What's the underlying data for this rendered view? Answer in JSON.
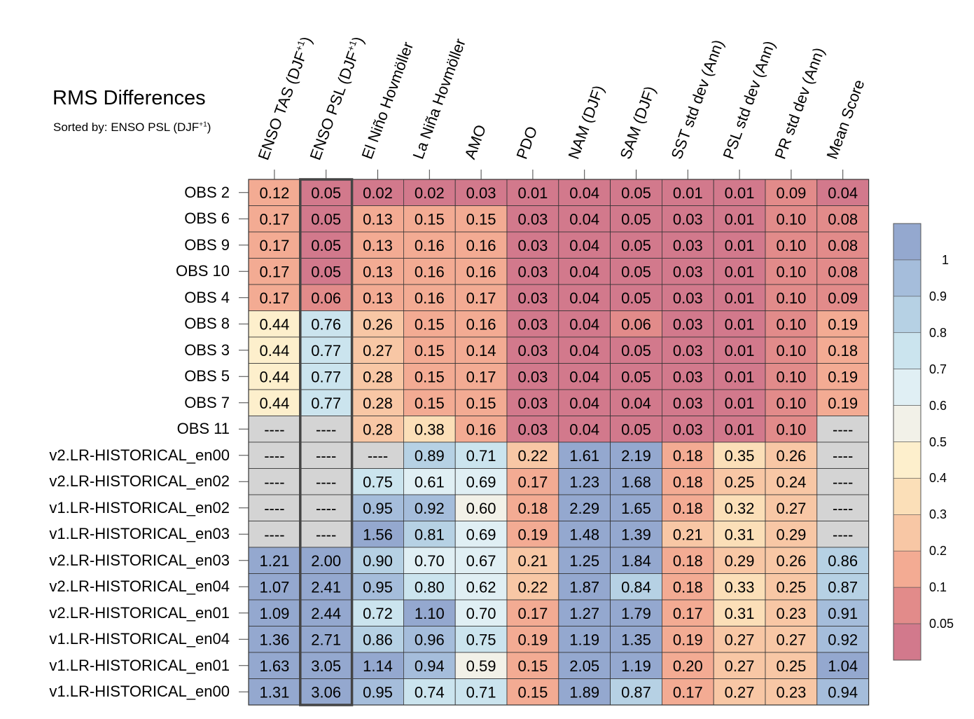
{
  "header": {
    "title": "RMS Differences",
    "subtitle_prefix": "Sorted by: ENSO PSL (DJF",
    "subtitle_sup": "+1",
    "subtitle_suffix": ")"
  },
  "chart_data": {
    "type": "heatmap",
    "title": "RMS Differences",
    "columns": [
      {
        "label": "ENSO TAS (DJF",
        "sup": "+1",
        "tail": ")"
      },
      {
        "label": "ENSO PSL (DJF",
        "sup": "+1",
        "tail": ")"
      },
      {
        "label": "El Niño Hovmöller",
        "sup": "",
        "tail": ""
      },
      {
        "label": "La Niña Hovmöller",
        "sup": "",
        "tail": ""
      },
      {
        "label": "AMO",
        "sup": "",
        "tail": ""
      },
      {
        "label": "PDO",
        "sup": "",
        "tail": ""
      },
      {
        "label": "NAM (DJF)",
        "sup": "",
        "tail": ""
      },
      {
        "label": "SAM (DJF)",
        "sup": "",
        "tail": ""
      },
      {
        "label": "SST std dev (Ann)",
        "sup": "",
        "tail": ""
      },
      {
        "label": "PSL std dev (Ann)",
        "sup": "",
        "tail": ""
      },
      {
        "label": "PR std dev (Ann)",
        "sup": "",
        "tail": ""
      },
      {
        "label": "Mean Score",
        "sup": "",
        "tail": ""
      }
    ],
    "rows": [
      "OBS 2",
      "OBS 6",
      "OBS 9",
      "OBS 10",
      "OBS 4",
      "OBS 8",
      "OBS 3",
      "OBS 5",
      "OBS 7",
      "OBS 11",
      "v2.LR-HISTORICAL_en00",
      "v2.LR-HISTORICAL_en02",
      "v1.LR-HISTORICAL_en02",
      "v1.LR-HISTORICAL_en03",
      "v2.LR-HISTORICAL_en03",
      "v2.LR-HISTORICAL_en04",
      "v2.LR-HISTORICAL_en01",
      "v1.LR-HISTORICAL_en04",
      "v1.LR-HISTORICAL_en01",
      "v1.LR-HISTORICAL_en00"
    ],
    "values": [
      [
        "0.12",
        "0.05",
        "0.02",
        "0.02",
        "0.03",
        "0.01",
        "0.04",
        "0.05",
        "0.01",
        "0.01",
        "0.09",
        "0.04"
      ],
      [
        "0.17",
        "0.05",
        "0.13",
        "0.15",
        "0.15",
        "0.03",
        "0.04",
        "0.05",
        "0.03",
        "0.01",
        "0.10",
        "0.08"
      ],
      [
        "0.17",
        "0.05",
        "0.13",
        "0.16",
        "0.16",
        "0.03",
        "0.04",
        "0.05",
        "0.03",
        "0.01",
        "0.10",
        "0.08"
      ],
      [
        "0.17",
        "0.05",
        "0.13",
        "0.16",
        "0.16",
        "0.03",
        "0.04",
        "0.05",
        "0.03",
        "0.01",
        "0.10",
        "0.08"
      ],
      [
        "0.17",
        "0.06",
        "0.13",
        "0.16",
        "0.17",
        "0.03",
        "0.04",
        "0.05",
        "0.03",
        "0.01",
        "0.10",
        "0.09"
      ],
      [
        "0.44",
        "0.76",
        "0.26",
        "0.15",
        "0.16",
        "0.03",
        "0.04",
        "0.06",
        "0.03",
        "0.01",
        "0.10",
        "0.19"
      ],
      [
        "0.44",
        "0.77",
        "0.27",
        "0.15",
        "0.14",
        "0.03",
        "0.04",
        "0.05",
        "0.03",
        "0.01",
        "0.10",
        "0.18"
      ],
      [
        "0.44",
        "0.77",
        "0.28",
        "0.15",
        "0.17",
        "0.03",
        "0.04",
        "0.05",
        "0.03",
        "0.01",
        "0.10",
        "0.19"
      ],
      [
        "0.44",
        "0.77",
        "0.28",
        "0.15",
        "0.15",
        "0.03",
        "0.04",
        "0.04",
        "0.03",
        "0.01",
        "0.10",
        "0.19"
      ],
      [
        "----",
        "----",
        "0.28",
        "0.38",
        "0.16",
        "0.03",
        "0.04",
        "0.05",
        "0.03",
        "0.01",
        "0.10",
        "----"
      ],
      [
        "----",
        "----",
        "----",
        "0.89",
        "0.71",
        "0.22",
        "1.61",
        "2.19",
        "0.18",
        "0.35",
        "0.26",
        "----"
      ],
      [
        "----",
        "----",
        "0.75",
        "0.61",
        "0.69",
        "0.17",
        "1.23",
        "1.68",
        "0.18",
        "0.25",
        "0.24",
        "----"
      ],
      [
        "----",
        "----",
        "0.95",
        "0.92",
        "0.60",
        "0.18",
        "2.29",
        "1.65",
        "0.18",
        "0.32",
        "0.27",
        "----"
      ],
      [
        "----",
        "----",
        "1.56",
        "0.81",
        "0.69",
        "0.19",
        "1.48",
        "1.39",
        "0.21",
        "0.31",
        "0.29",
        "----"
      ],
      [
        "1.21",
        "2.00",
        "0.90",
        "0.70",
        "0.67",
        "0.21",
        "1.25",
        "1.84",
        "0.18",
        "0.29",
        "0.26",
        "0.86"
      ],
      [
        "1.07",
        "2.41",
        "0.95",
        "0.80",
        "0.62",
        "0.22",
        "1.87",
        "0.84",
        "0.18",
        "0.33",
        "0.25",
        "0.87"
      ],
      [
        "1.09",
        "2.44",
        "0.72",
        "1.10",
        "0.70",
        "0.17",
        "1.27",
        "1.79",
        "0.17",
        "0.31",
        "0.23",
        "0.91"
      ],
      [
        "1.36",
        "2.71",
        "0.86",
        "0.96",
        "0.75",
        "0.19",
        "1.19",
        "1.35",
        "0.19",
        "0.27",
        "0.27",
        "0.92"
      ],
      [
        "1.63",
        "3.05",
        "1.14",
        "0.94",
        "0.59",
        "0.15",
        "2.05",
        "1.19",
        "0.20",
        "0.27",
        "0.25",
        "1.04"
      ],
      [
        "1.31",
        "3.06",
        "0.95",
        "0.74",
        "0.71",
        "0.15",
        "1.89",
        "0.87",
        "0.17",
        "0.27",
        "0.23",
        "0.94"
      ]
    ],
    "missing_marker": "----",
    "sorted_by_column": 1,
    "colorbar": {
      "tick_labels": [
        "1",
        "0.9",
        "0.8",
        "0.7",
        "0.6",
        "0.5",
        "0.4",
        "0.3",
        "0.2",
        "0.1",
        "0.05"
      ],
      "colors_top_to_bottom": [
        "#94a8cf",
        "#a5bddb",
        "#b6d1e4",
        "#cbe4ee",
        "#e0eff4",
        "#f2f1e8",
        "#fdefcc",
        "#fbdfb8",
        "#f8c7a5",
        "#f3ab93",
        "#e28b8a",
        "#d2798c"
      ],
      "missing_color": "#d4d4d4",
      "placement": "right"
    }
  }
}
